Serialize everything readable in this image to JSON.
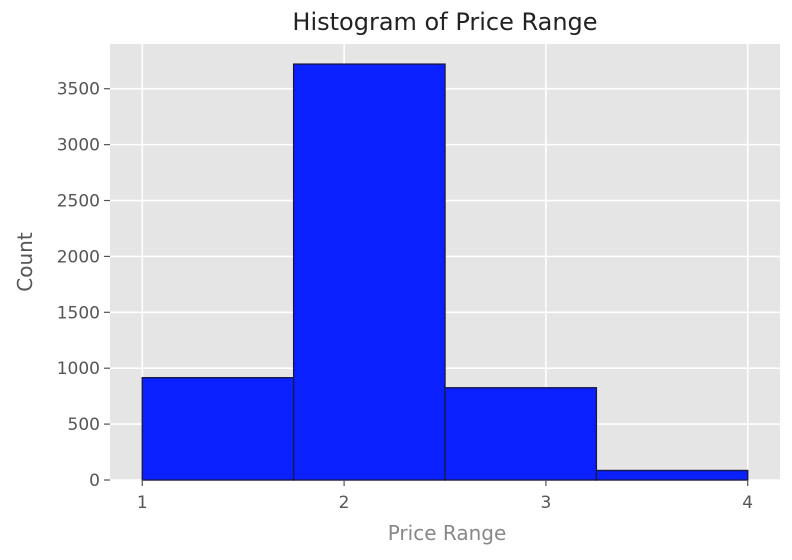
{
  "chart_data": {
    "type": "bar",
    "title": "Histogram of Price Range",
    "xlabel": "Price Range",
    "ylabel": "Count",
    "bins": [
      {
        "start": 1.0,
        "end": 1.75,
        "value": 915
      },
      {
        "start": 1.75,
        "end": 2.5,
        "value": 3720
      },
      {
        "start": 2.5,
        "end": 3.25,
        "value": 825
      },
      {
        "start": 3.25,
        "end": 4.0,
        "value": 85
      }
    ],
    "xlim": [
      0.84,
      4.16
    ],
    "ylim": [
      0,
      3900
    ],
    "x_ticks": [
      1,
      2,
      3,
      4
    ],
    "y_ticks": [
      0,
      500,
      1000,
      1500,
      2000,
      2500,
      3000,
      3500
    ],
    "grid": true,
    "colors": {
      "bar_fill": "#0a20ff",
      "bar_edge": "#1a1a4a",
      "plot_background": "#e5e5e5",
      "grid": "#ffffff",
      "text": "#555555",
      "title": "#222222"
    }
  }
}
